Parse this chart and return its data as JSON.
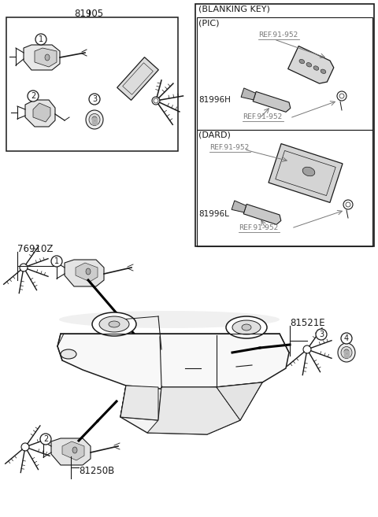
{
  "bg_color": "#ffffff",
  "line_color": "#1a1a1a",
  "gray_color": "#777777",
  "dark_gray": "#444444",
  "part_numbers": {
    "top_left_box": "81905",
    "mid_left": "76910Z",
    "bottom_left": "81250B",
    "right_label": "81521E",
    "pic_key": "81996H",
    "dard_key": "81996L"
  },
  "ref_label": "REF.91-952",
  "blanking_key_label": "(BLANKING KEY)",
  "pic_label": "(PIC)",
  "dard_label": "(DARD)",
  "figsize": [
    4.8,
    6.57
  ],
  "dpi": 100,
  "xlim": [
    0,
    480
  ],
  "ylim": [
    0,
    657
  ]
}
